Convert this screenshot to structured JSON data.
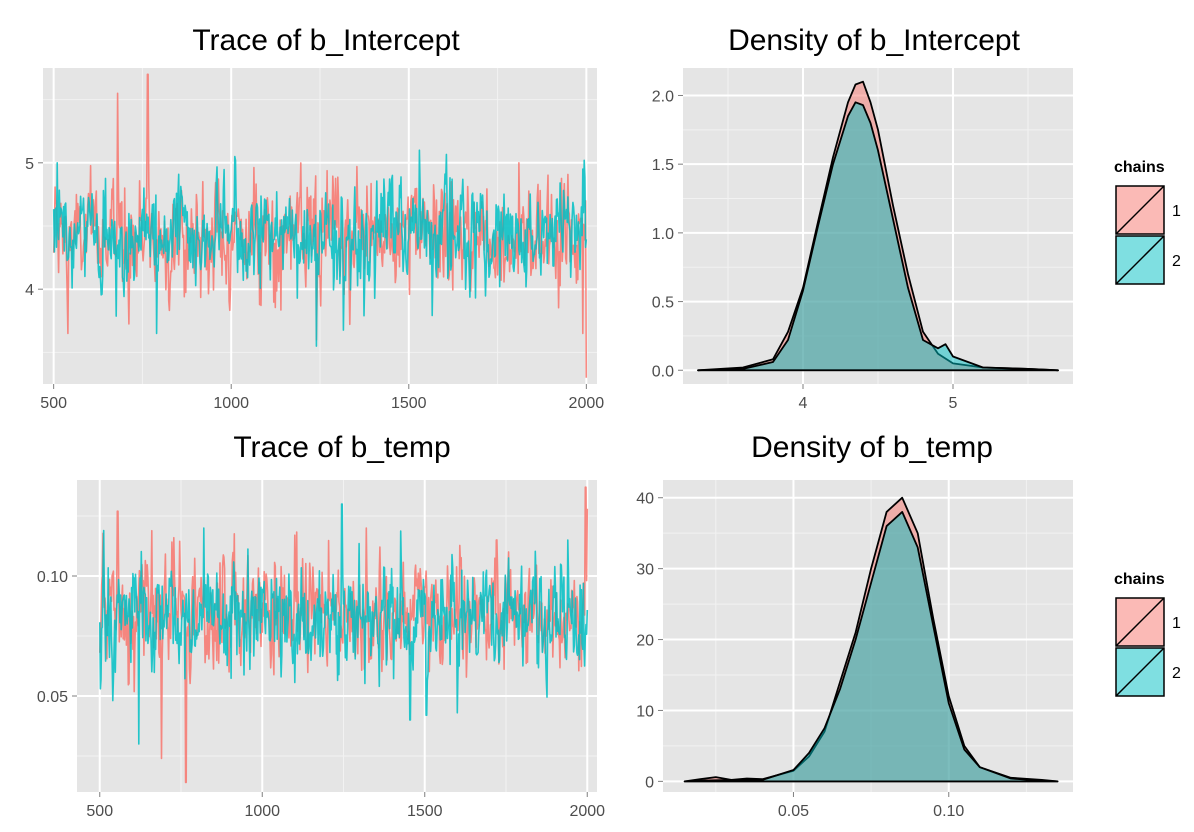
{
  "colors": {
    "chain1": "#f8766d",
    "chain2": "#00bfc4",
    "panel": "#e5e5e5",
    "grid": "#ffffff",
    "axis": "#4d4d4d"
  },
  "legend": {
    "title": "chains",
    "items": [
      "1",
      "2"
    ]
  },
  "chart_data": [
    {
      "id": "trace-intercept",
      "type": "line",
      "title": "Trace of b_Intercept",
      "xlabel": "",
      "ylabel": "",
      "xlim": [
        470,
        2030
      ],
      "ylim": [
        3.25,
        5.75
      ],
      "xticks": [
        500,
        1000,
        1500,
        2000
      ],
      "xtick_labels": [
        "500",
        "1000",
        "1500",
        "2000"
      ],
      "yticks": [
        4,
        5
      ],
      "ytick_labels": [
        "4",
        "5"
      ],
      "grid": true,
      "x_range": [
        500,
        2000
      ],
      "series": [
        {
          "name": "1",
          "mean": 4.42,
          "sd": 0.2,
          "spikes": [
            [
              540,
              3.65
            ],
            [
              680,
              5.55
            ],
            [
              765,
              5.7
            ],
            [
              700,
              4.8
            ],
            [
              1240,
              3.6
            ],
            [
              1990,
              3.65
            ],
            [
              2000,
              3.3
            ],
            [
              1620,
              4.85
            ],
            [
              1810,
              5.0
            ]
          ]
        },
        {
          "name": "2",
          "mean": 4.42,
          "sd": 0.19,
          "spikes": [
            [
              510,
              5.0
            ],
            [
              790,
              3.65
            ],
            [
              1010,
              5.05
            ],
            [
              1240,
              3.55
            ],
            [
              1530,
              5.1
            ],
            [
              1600,
              4.75
            ],
            [
              1660,
              4.0
            ],
            [
              1990,
              4.95
            ]
          ]
        }
      ]
    },
    {
      "id": "density-intercept",
      "type": "area",
      "title": "Density of b_Intercept",
      "xlabel": "",
      "ylabel": "",
      "xlim": [
        3.2,
        5.8
      ],
      "ylim": [
        -0.1,
        2.2
      ],
      "xticks": [
        4,
        5
      ],
      "xtick_labels": [
        "4",
        "5"
      ],
      "yticks": [
        0.0,
        0.5,
        1.0,
        1.5,
        2.0
      ],
      "ytick_labels": [
        "0.0",
        "0.5",
        "1.0",
        "1.5",
        "2.0"
      ],
      "grid": true,
      "legend": "right",
      "series": [
        {
          "name": "1",
          "x": [
            3.3,
            3.6,
            3.8,
            3.9,
            4.0,
            4.1,
            4.2,
            4.3,
            4.35,
            4.4,
            4.45,
            4.5,
            4.6,
            4.7,
            4.8,
            4.9,
            5.0,
            5.2,
            5.5,
            5.7
          ],
          "y": [
            0.0,
            0.02,
            0.08,
            0.28,
            0.6,
            1.08,
            1.55,
            1.95,
            2.08,
            2.1,
            1.95,
            1.75,
            1.2,
            0.7,
            0.28,
            0.12,
            0.05,
            0.02,
            0.01,
            0.0
          ]
        },
        {
          "name": "2",
          "x": [
            3.3,
            3.6,
            3.8,
            3.9,
            4.0,
            4.1,
            4.2,
            4.3,
            4.35,
            4.4,
            4.45,
            4.5,
            4.6,
            4.7,
            4.8,
            4.9,
            4.95,
            5.0,
            5.2,
            5.5,
            5.7
          ],
          "y": [
            0.0,
            0.01,
            0.06,
            0.22,
            0.58,
            1.05,
            1.5,
            1.85,
            1.95,
            1.93,
            1.8,
            1.6,
            1.1,
            0.6,
            0.22,
            0.16,
            0.19,
            0.1,
            0.02,
            0.01,
            0.0
          ]
        }
      ]
    },
    {
      "id": "trace-temp",
      "type": "line",
      "title": "Trace of b_temp",
      "xlabel": "",
      "ylabel": "",
      "xlim": [
        430,
        2030
      ],
      "ylim": [
        0.01,
        0.14
      ],
      "xticks": [
        500,
        1000,
        1500,
        2000
      ],
      "xtick_labels": [
        "500",
        "1000",
        "1500",
        "2000"
      ],
      "yticks": [
        0.05,
        0.1
      ],
      "ytick_labels": [
        "0.05",
        "0.10"
      ],
      "grid": true,
      "x_range": [
        500,
        2000
      ],
      "series": [
        {
          "name": "1",
          "mean": 0.083,
          "sd": 0.011,
          "spikes": [
            [
              555,
              0.127
            ],
            [
              690,
              0.024
            ],
            [
              765,
              0.014
            ],
            [
              1100,
              0.117
            ],
            [
              1320,
              0.12
            ],
            [
              1720,
              0.115
            ],
            [
              1995,
              0.137
            ],
            [
              2000,
              0.128
            ]
          ]
        },
        {
          "name": "2",
          "mean": 0.083,
          "sd": 0.01,
          "spikes": [
            [
              510,
              0.102
            ],
            [
              620,
              0.03
            ],
            [
              1245,
              0.13
            ],
            [
              1455,
              0.04
            ],
            [
              1505,
              0.042
            ],
            [
              1600,
              0.043
            ],
            [
              820,
              0.12
            ],
            [
              1940,
              0.115
            ]
          ]
        }
      ]
    },
    {
      "id": "density-temp",
      "type": "area",
      "title": "Density of b_temp",
      "xlabel": "",
      "ylabel": "",
      "xlim": [
        0.008,
        0.14
      ],
      "ylim": [
        -1.5,
        42.5
      ],
      "xticks": [
        0.05,
        0.1
      ],
      "xtick_labels": [
        "0.05",
        "0.10"
      ],
      "yticks": [
        0,
        10,
        20,
        30,
        40
      ],
      "ytick_labels": [
        "0",
        "10",
        "20",
        "30",
        "40"
      ],
      "grid": true,
      "legend": "right",
      "series": [
        {
          "name": "1",
          "x": [
            0.015,
            0.02,
            0.025,
            0.03,
            0.035,
            0.04,
            0.05,
            0.055,
            0.06,
            0.065,
            0.07,
            0.075,
            0.08,
            0.085,
            0.09,
            0.095,
            0.1,
            0.105,
            0.11,
            0.12,
            0.13,
            0.135
          ],
          "y": [
            0,
            0.3,
            0.6,
            0.2,
            0.4,
            0.3,
            1.5,
            3.5,
            7,
            14,
            21,
            30,
            38,
            40,
            35,
            23,
            12,
            5,
            2,
            0.5,
            0.2,
            0
          ]
        },
        {
          "name": "2",
          "x": [
            0.015,
            0.02,
            0.03,
            0.04,
            0.05,
            0.055,
            0.06,
            0.065,
            0.07,
            0.075,
            0.08,
            0.085,
            0.09,
            0.095,
            0.1,
            0.105,
            0.11,
            0.12,
            0.13,
            0.135
          ],
          "y": [
            0,
            0.1,
            0.2,
            0.2,
            1.6,
            4,
            7.5,
            13,
            20,
            28,
            36,
            38,
            33,
            22,
            11,
            4.5,
            2,
            0.4,
            0.1,
            0
          ]
        }
      ]
    }
  ]
}
